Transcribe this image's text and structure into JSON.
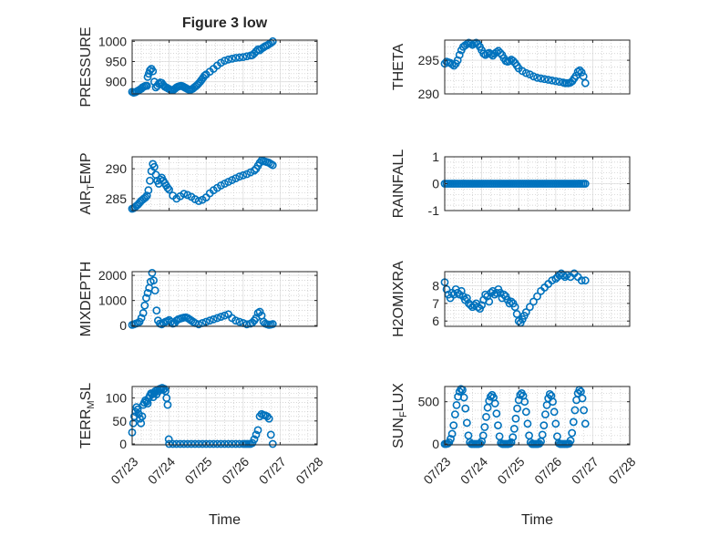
{
  "figure": {
    "title": "Figure 3 low",
    "marker_color": "#0072BD",
    "axis_color": "#262626",
    "grid_color": "#c8c8c8"
  },
  "chart_data": [
    {
      "id": "pressure",
      "type": "scatter",
      "title": "Figure 3 low",
      "ylabel": "PRESSURE",
      "ylabel_sub": "",
      "ylim": [
        870,
        1003
      ],
      "yticks": [
        900,
        950,
        1000
      ],
      "xticks": [],
      "xlabel": "",
      "grid": true,
      "x": [
        23.0,
        23.04,
        23.08,
        23.12,
        23.16,
        23.2,
        23.25,
        23.28,
        23.32,
        23.36,
        23.4,
        23.42,
        23.45,
        23.48,
        23.52,
        23.56,
        23.6,
        23.64,
        23.68,
        23.72,
        23.76,
        23.8,
        23.84,
        23.88,
        23.92,
        23.96,
        24.0,
        24.04,
        24.08,
        24.12,
        24.16,
        24.2,
        24.24,
        24.28,
        24.32,
        24.36,
        24.4,
        24.44,
        24.48,
        24.52,
        24.56,
        24.6,
        24.64,
        24.68,
        24.72,
        24.76,
        24.8,
        24.84,
        24.88,
        24.92,
        24.96,
        25.0,
        25.1,
        25.2,
        25.3,
        25.4,
        25.5,
        25.6,
        25.7,
        25.8,
        25.9,
        26.0,
        26.1,
        26.2,
        26.25,
        26.3,
        26.35,
        26.4,
        26.45,
        26.5,
        26.55,
        26.6,
        26.65,
        26.7,
        26.75,
        26.8
      ],
      "y": [
        875,
        873,
        874,
        876,
        878,
        880,
        883,
        886,
        888,
        890,
        890,
        912,
        920,
        928,
        932,
        926,
        900,
        886,
        890,
        895,
        898,
        897,
        892,
        888,
        886,
        884,
        882,
        880,
        879,
        880,
        883,
        886,
        888,
        889,
        890,
        889,
        887,
        885,
        883,
        881,
        880,
        881,
        883,
        886,
        889,
        892,
        896,
        900,
        905,
        910,
        915,
        918,
        925,
        932,
        940,
        947,
        952,
        955,
        957,
        959,
        960,
        961,
        963,
        965,
        966,
        970,
        975,
        980,
        978,
        982,
        985,
        988,
        990,
        993,
        996,
        1000
      ]
    },
    {
      "id": "theta",
      "type": "scatter",
      "title": "",
      "ylabel": "THETA",
      "ylabel_sub": "",
      "ylim": [
        290,
        298
      ],
      "yticks": [
        290,
        295
      ],
      "xticks": [],
      "xlabel": "",
      "grid": true,
      "x": [
        23.0,
        23.05,
        23.1,
        23.15,
        23.2,
        23.25,
        23.3,
        23.35,
        23.4,
        23.45,
        23.5,
        23.55,
        23.6,
        23.65,
        23.7,
        23.75,
        23.8,
        23.85,
        23.9,
        23.95,
        24.0,
        24.05,
        24.1,
        24.15,
        24.2,
        24.25,
        24.3,
        24.35,
        24.4,
        24.45,
        24.5,
        24.55,
        24.6,
        24.65,
        24.7,
        24.75,
        24.8,
        24.85,
        24.9,
        24.95,
        25.0,
        25.1,
        25.2,
        25.3,
        25.4,
        25.5,
        25.6,
        25.7,
        25.8,
        25.9,
        26.0,
        26.1,
        26.2,
        26.25,
        26.3,
        26.35,
        26.4,
        26.45,
        26.5,
        26.55,
        26.6,
        26.65,
        26.7,
        26.75,
        26.8
      ],
      "y": [
        294.5,
        294.8,
        294.7,
        294.6,
        294.4,
        294.2,
        294.5,
        295.0,
        295.8,
        296.5,
        297.0,
        297.2,
        297.4,
        297.6,
        297.5,
        297.3,
        297.5,
        297.6,
        297.4,
        297.0,
        296.5,
        296.0,
        295.8,
        296.0,
        296.1,
        295.9,
        295.7,
        296.0,
        296.2,
        296.4,
        296.1,
        295.8,
        295.3,
        294.9,
        294.8,
        294.9,
        295.1,
        294.9,
        294.6,
        294.2,
        293.8,
        293.4,
        293.1,
        292.9,
        292.6,
        292.4,
        292.3,
        292.2,
        292.1,
        292.0,
        291.9,
        291.8,
        291.7,
        291.6,
        291.6,
        291.6,
        291.7,
        291.9,
        292.3,
        292.7,
        293.3,
        293.5,
        293.2,
        292.6,
        291.6
      ]
    },
    {
      "id": "air_temp",
      "type": "scatter",
      "title": "",
      "ylabel": "AIR",
      "ylabel_sub": "T",
      "ylabel_rest": "EMP",
      "ylim": [
        283,
        292
      ],
      "yticks": [
        285,
        290
      ],
      "xticks": [],
      "xlabel": "",
      "grid": true,
      "x": [
        23.0,
        23.04,
        23.08,
        23.12,
        23.16,
        23.2,
        23.24,
        23.28,
        23.32,
        23.36,
        23.4,
        23.44,
        23.48,
        23.52,
        23.56,
        23.6,
        23.64,
        23.68,
        23.72,
        23.76,
        23.8,
        23.84,
        23.88,
        23.92,
        23.96,
        24.0,
        24.1,
        24.2,
        24.3,
        24.4,
        24.5,
        24.6,
        24.7,
        24.8,
        24.9,
        25.0,
        25.1,
        25.2,
        25.3,
        25.4,
        25.5,
        25.6,
        25.7,
        25.8,
        25.9,
        26.0,
        26.1,
        26.2,
        26.3,
        26.35,
        26.4,
        26.45,
        26.5,
        26.55,
        26.6,
        26.65,
        26.7,
        26.75,
        26.8
      ],
      "y": [
        283.3,
        283.4,
        283.6,
        283.8,
        284.0,
        284.3,
        284.6,
        284.8,
        285.0,
        285.2,
        285.5,
        286.4,
        288.0,
        289.6,
        290.8,
        290.3,
        289.0,
        288.0,
        287.5,
        288.2,
        288.5,
        288.0,
        287.6,
        287.2,
        286.8,
        286.5,
        285.5,
        285.0,
        285.4,
        285.8,
        285.6,
        285.3,
        284.9,
        284.6,
        284.8,
        285.2,
        285.9,
        286.4,
        286.8,
        287.2,
        287.5,
        287.8,
        288.1,
        288.4,
        288.7,
        288.9,
        289.1,
        289.4,
        289.7,
        290.0,
        290.5,
        291.0,
        291.4,
        291.3,
        291.2,
        291.1,
        291.0,
        290.8,
        290.6
      ]
    },
    {
      "id": "rainfall",
      "type": "scatter",
      "title": "",
      "ylabel": "RAINFALL",
      "ylabel_sub": "",
      "ylim": [
        -1,
        1
      ],
      "yticks": [
        -1,
        0,
        1
      ],
      "xticks": [],
      "xlabel": "",
      "grid": true,
      "x_start": 23.0,
      "x_end": 26.8,
      "x_step": 0.05,
      "value": 0
    },
    {
      "id": "mixdepth",
      "type": "scatter",
      "title": "",
      "ylabel": "MIXDEPTH",
      "ylabel_sub": "",
      "ylim": [
        -30,
        2150
      ],
      "yticks": [
        0,
        1000,
        2000
      ],
      "xticks": [],
      "xlabel": "",
      "grid": true,
      "x": [
        23.0,
        23.05,
        23.1,
        23.15,
        23.2,
        23.25,
        23.3,
        23.34,
        23.38,
        23.42,
        23.46,
        23.5,
        23.54,
        23.58,
        23.62,
        23.66,
        23.7,
        23.75,
        23.8,
        23.85,
        23.9,
        23.95,
        24.0,
        24.05,
        24.1,
        24.15,
        24.2,
        24.25,
        24.3,
        24.35,
        24.4,
        24.45,
        24.5,
        24.55,
        24.6,
        24.65,
        24.7,
        24.8,
        24.9,
        25.0,
        25.1,
        25.2,
        25.3,
        25.4,
        25.5,
        25.6,
        25.7,
        25.8,
        25.9,
        26.0,
        26.1,
        26.2,
        26.25,
        26.3,
        26.35,
        26.4,
        26.45,
        26.5,
        26.55,
        26.6,
        26.65,
        26.7,
        26.75,
        26.8
      ],
      "y": [
        30,
        50,
        80,
        100,
        150,
        300,
        500,
        800,
        1100,
        1300,
        1500,
        1750,
        2100,
        1800,
        1400,
        600,
        200,
        80,
        50,
        100,
        150,
        180,
        220,
        150,
        80,
        100,
        200,
        250,
        280,
        300,
        320,
        330,
        300,
        250,
        200,
        150,
        100,
        50,
        100,
        150,
        200,
        250,
        300,
        350,
        400,
        450,
        300,
        200,
        150,
        100,
        50,
        80,
        120,
        200,
        300,
        500,
        550,
        400,
        150,
        80,
        50,
        30,
        40,
        60
      ]
    },
    {
      "id": "h2omixra",
      "type": "scatter",
      "title": "",
      "ylabel": "H2OMIXRA",
      "ylabel_sub": "",
      "ylim": [
        5.7,
        8.8
      ],
      "yticks": [
        6,
        7,
        8
      ],
      "xticks": [],
      "xlabel": "",
      "grid": true,
      "x": [
        23.0,
        23.05,
        23.1,
        23.15,
        23.2,
        23.25,
        23.3,
        23.35,
        23.4,
        23.45,
        23.5,
        23.55,
        23.6,
        23.65,
        23.7,
        23.75,
        23.8,
        23.85,
        23.9,
        23.95,
        24.0,
        24.05,
        24.1,
        24.15,
        24.2,
        24.25,
        24.3,
        24.35,
        24.4,
        24.45,
        24.5,
        24.55,
        24.6,
        24.65,
        24.7,
        24.75,
        24.8,
        24.85,
        24.9,
        24.95,
        25.0,
        25.05,
        25.1,
        25.15,
        25.2,
        25.3,
        25.4,
        25.5,
        25.6,
        25.7,
        25.8,
        25.9,
        26.0,
        26.05,
        26.1,
        26.15,
        26.2,
        26.25,
        26.3,
        26.4,
        26.5,
        26.6,
        26.7,
        26.8
      ],
      "y": [
        8.2,
        7.8,
        7.5,
        7.3,
        7.6,
        7.5,
        7.8,
        7.6,
        7.5,
        7.7,
        7.4,
        7.2,
        7.3,
        7.0,
        6.9,
        6.8,
        6.9,
        7.0,
        6.8,
        6.7,
        6.9,
        7.2,
        7.5,
        7.4,
        7.1,
        7.6,
        7.7,
        7.5,
        7.6,
        7.8,
        7.6,
        7.3,
        7.5,
        7.4,
        7.2,
        7.0,
        7.1,
        7.0,
        6.8,
        6.4,
        6.0,
        5.9,
        6.1,
        6.3,
        6.5,
        6.8,
        7.1,
        7.4,
        7.7,
        7.9,
        8.1,
        8.3,
        8.4,
        8.5,
        8.6,
        8.7,
        8.6,
        8.5,
        8.6,
        8.5,
        8.7,
        8.5,
        8.3,
        8.3
      ]
    },
    {
      "id": "terr_msl",
      "type": "scatter",
      "title": "",
      "ylabel": "TERR",
      "ylabel_sub": "M",
      "ylabel_rest": "SL",
      "ylim": [
        -2,
        125
      ],
      "yticks": [
        0,
        50,
        100
      ],
      "xticks": [
        "07/23",
        "07/24",
        "07/25",
        "07/26",
        "07/27",
        "07/28"
      ],
      "xlabel": "Time",
      "grid": true,
      "x": [
        23.0,
        23.03,
        23.06,
        23.09,
        23.12,
        23.15,
        23.18,
        23.21,
        23.24,
        23.27,
        23.3,
        23.33,
        23.36,
        23.39,
        23.42,
        23.45,
        23.48,
        23.51,
        23.54,
        23.57,
        23.6,
        23.63,
        23.66,
        23.69,
        23.72,
        23.75,
        23.78,
        23.81,
        23.84,
        23.87,
        23.9,
        23.93,
        23.96,
        23.99,
        24.0,
        24.1,
        24.2,
        24.3,
        24.4,
        24.5,
        24.6,
        24.7,
        24.8,
        24.9,
        25.0,
        25.1,
        25.2,
        25.3,
        25.4,
        25.5,
        25.6,
        25.7,
        25.8,
        25.9,
        26.0,
        26.05,
        26.1,
        26.15,
        26.2,
        26.25,
        26.3,
        26.35,
        26.4,
        26.45,
        26.5,
        26.55,
        26.6,
        26.65,
        26.7,
        26.75,
        26.8
      ],
      "y": [
        25,
        45,
        60,
        70,
        80,
        75,
        65,
        55,
        45,
        60,
        85,
        90,
        95,
        92,
        88,
        100,
        105,
        110,
        108,
        102,
        110,
        115,
        108,
        118,
        115,
        120,
        118,
        122,
        118,
        120,
        115,
        100,
        85,
        10,
        0,
        0,
        0,
        0,
        0,
        0,
        0,
        0,
        0,
        0,
        0,
        0,
        0,
        0,
        0,
        0,
        0,
        0,
        0,
        0,
        0,
        0,
        0,
        0,
        0,
        2,
        10,
        20,
        30,
        60,
        65,
        63,
        62,
        60,
        55,
        20,
        0
      ]
    },
    {
      "id": "sun_flux",
      "type": "scatter",
      "title": "",
      "ylabel": "SUN",
      "ylabel_sub": "F",
      "ylabel_rest": "LUX",
      "ylim": [
        -10,
        680
      ],
      "yticks": [
        0,
        500
      ],
      "xticks": [
        "07/23",
        "07/24",
        "07/25",
        "07/26",
        "07/27",
        "07/28"
      ],
      "xlabel": "Time",
      "grid": true,
      "x": [
        23.0,
        23.04,
        23.08,
        23.12,
        23.16,
        23.2,
        23.24,
        23.28,
        23.32,
        23.36,
        23.4,
        23.44,
        23.48,
        23.52,
        23.56,
        23.6,
        23.64,
        23.68,
        23.72,
        23.76,
        23.8,
        23.84,
        23.88,
        23.92,
        23.96,
        24.0,
        24.04,
        24.08,
        24.12,
        24.16,
        24.2,
        24.24,
        24.28,
        24.32,
        24.36,
        24.4,
        24.44,
        24.48,
        24.52,
        24.56,
        24.6,
        24.64,
        24.68,
        24.72,
        24.76,
        24.8,
        24.84,
        24.88,
        24.92,
        24.96,
        25.0,
        25.04,
        25.08,
        25.12,
        25.16,
        25.2,
        25.24,
        25.28,
        25.32,
        25.36,
        25.4,
        25.44,
        25.48,
        25.52,
        25.56,
        25.6,
        25.64,
        25.68,
        25.72,
        25.76,
        25.8,
        25.84,
        25.88,
        25.92,
        25.96,
        26.0,
        26.04,
        26.08,
        26.12,
        26.16,
        26.2,
        26.24,
        26.28,
        26.32,
        26.36,
        26.4,
        26.44,
        26.48,
        26.52,
        26.56,
        26.6,
        26.64,
        26.68,
        26.72,
        26.76,
        26.8
      ],
      "y": [
        0,
        0,
        5,
        20,
        60,
        120,
        220,
        350,
        460,
        560,
        620,
        650,
        640,
        550,
        420,
        250,
        100,
        20,
        0,
        0,
        0,
        0,
        0,
        0,
        5,
        30,
        100,
        200,
        320,
        430,
        510,
        560,
        580,
        550,
        480,
        360,
        220,
        90,
        10,
        0,
        0,
        0,
        0,
        0,
        5,
        20,
        80,
        180,
        300,
        420,
        520,
        580,
        600,
        570,
        500,
        380,
        240,
        100,
        20,
        0,
        0,
        0,
        0,
        0,
        5,
        30,
        110,
        220,
        350,
        460,
        540,
        590,
        570,
        500,
        380,
        240,
        90,
        10,
        0,
        0,
        0,
        0,
        0,
        0,
        5,
        40,
        130,
        260,
        400,
        520,
        600,
        640,
        620,
        540,
        400,
        240
      ]
    }
  ]
}
